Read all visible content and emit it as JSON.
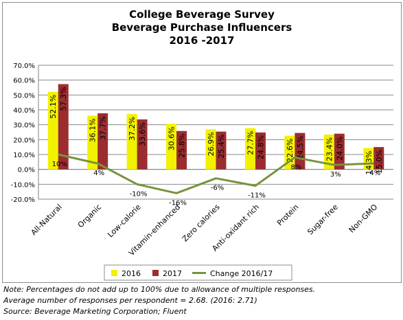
{
  "chart_data": {
    "type": "bar",
    "title": [
      "College Beverage Survey",
      "Beverage Purchase Influencers",
      "2016 -2017"
    ],
    "categories": [
      "All-Natural",
      "Organic",
      "Low-calorie",
      "Vitamin-enhanced",
      "Zero calories",
      "Anti-oxidant rich",
      "Protein",
      "Sugar-free",
      "Non-GMO"
    ],
    "series": [
      {
        "name": "2016",
        "kind": "bar",
        "color": "#f2f200",
        "values": [
          52.1,
          36.1,
          37.2,
          30.6,
          26.9,
          27.7,
          22.6,
          23.4,
          14.3
        ],
        "labels": [
          "52.1%",
          "36.1%",
          "37.2%",
          "30.6%",
          "26.9%",
          "27.7%",
          "22.6%",
          "23.4%",
          "14.3%"
        ]
      },
      {
        "name": "2017",
        "kind": "bar",
        "color": "#9b2d30",
        "values": [
          57.3,
          37.7,
          33.6,
          25.8,
          25.4,
          24.8,
          24.5,
          24.0,
          15.0
        ],
        "labels": [
          "57.3%",
          "37.7%",
          "33.6%",
          "25.8%",
          "25.4%",
          "24.8%",
          "24.5%",
          "24.0%",
          "15.0%"
        ]
      },
      {
        "name": "Change 2016/17",
        "kind": "line",
        "color": "#77933c",
        "values": [
          10,
          4,
          -10,
          -16,
          -6,
          -11,
          8,
          3,
          4
        ],
        "labels": [
          "10%",
          "4%",
          "-10%",
          "-16%",
          "-6%",
          "-11%",
          "8%",
          "3%",
          "4%"
        ]
      }
    ],
    "ylim": [
      -20,
      70
    ],
    "yticks": [
      -20,
      -10,
      0,
      10,
      20,
      30,
      40,
      50,
      60,
      70
    ],
    "ytick_labels": [
      "-20.0%",
      "-10.0%",
      "0.0%",
      "10.0%",
      "20.0%",
      "30.0%",
      "40.0%",
      "50.0%",
      "60.0%",
      "70.0%"
    ],
    "grid": true,
    "legend": "bottom"
  },
  "notes": {
    "line1": "Note: Percentages do not add up to 100% due to allowance of multiple responses.",
    "line2": "Average number of responses per respondent = 2.68. (2016: 2.71)",
    "line3": "Source: Beverage Marketing Corporation; Fluent"
  }
}
